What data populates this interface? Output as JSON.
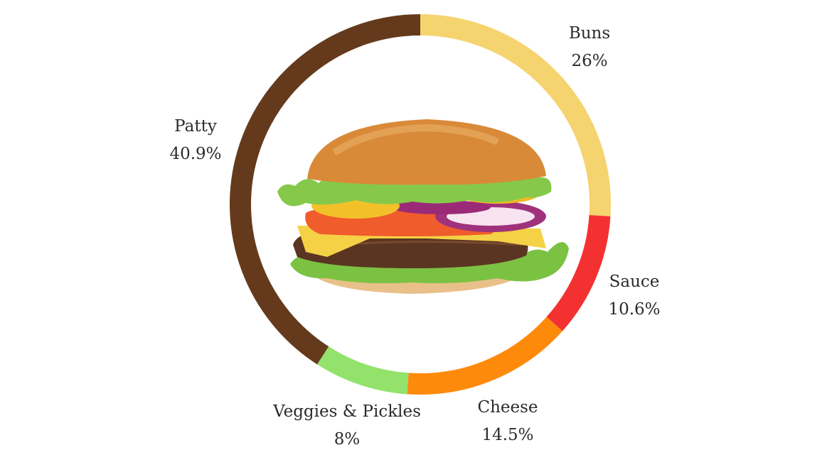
{
  "chart_data": {
    "type": "pie",
    "categories": [
      "Buns",
      "Sauce",
      "Cheese",
      "Veggies & Pickles",
      "Patty"
    ],
    "values": [
      26,
      10.6,
      14.5,
      8,
      40.9
    ],
    "percent_labels": [
      "26%",
      "10.6%",
      "14.5%",
      "8%",
      "40.9%"
    ],
    "colors": [
      "#f5d36e",
      "#f43131",
      "#fe8a0c",
      "#92e26c",
      "#653a1c"
    ],
    "style": "donut",
    "start": "top, clockwise"
  },
  "center_image": {
    "icon": "burger-icon"
  }
}
